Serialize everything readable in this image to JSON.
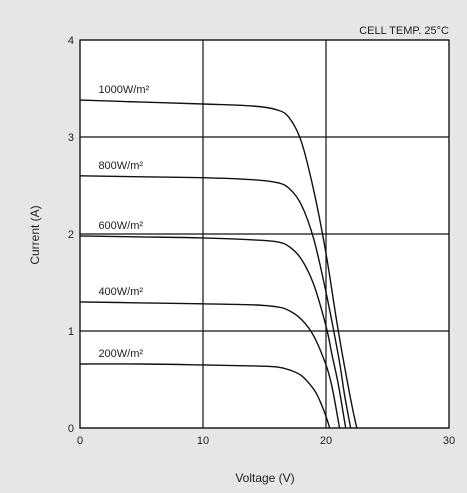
{
  "chart_data": {
    "type": "line",
    "xlabel": "Voltage (V)",
    "ylabel": "Current (A)",
    "annotation": "CELL TEMP. 25°C",
    "xlim": [
      0,
      30
    ],
    "ylim": [
      0,
      4
    ],
    "x_ticks": [
      0,
      10,
      20,
      30
    ],
    "y_ticks": [
      0,
      1,
      2,
      3,
      4
    ],
    "grid": true,
    "series": [
      {
        "name": "1000W/m²",
        "x": [
          0,
          5,
          10,
          14,
          16,
          17,
          18,
          19,
          20,
          21,
          22,
          22.5
        ],
        "y": [
          3.38,
          3.36,
          3.34,
          3.32,
          3.28,
          3.2,
          2.95,
          2.45,
          1.8,
          1.0,
          0.3,
          0.0
        ]
      },
      {
        "name": "800W/m²",
        "x": [
          0,
          5,
          10,
          14,
          16,
          17,
          18,
          19,
          20,
          21,
          21.5,
          22.0
        ],
        "y": [
          2.6,
          2.59,
          2.58,
          2.56,
          2.53,
          2.47,
          2.3,
          1.95,
          1.4,
          0.75,
          0.35,
          0.0
        ]
      },
      {
        "name": "600W/m²",
        "x": [
          0,
          5,
          10,
          14,
          16,
          17,
          18,
          19,
          20,
          20.5,
          21.0,
          21.6
        ],
        "y": [
          1.98,
          1.97,
          1.96,
          1.94,
          1.92,
          1.87,
          1.74,
          1.48,
          1.05,
          0.75,
          0.45,
          0.0
        ]
      },
      {
        "name": "400W/m²",
        "x": [
          0,
          5,
          10,
          14,
          16,
          17,
          18,
          19,
          20,
          20.5,
          21.1
        ],
        "y": [
          1.3,
          1.29,
          1.28,
          1.27,
          1.25,
          1.21,
          1.12,
          0.95,
          0.65,
          0.42,
          0.0
        ]
      },
      {
        "name": "200W/m²",
        "x": [
          0,
          5,
          10,
          14,
          16,
          17,
          18,
          19,
          19.5,
          20.0,
          20.3
        ],
        "y": [
          0.66,
          0.66,
          0.65,
          0.64,
          0.63,
          0.6,
          0.54,
          0.4,
          0.28,
          0.12,
          0.0
        ]
      }
    ]
  }
}
